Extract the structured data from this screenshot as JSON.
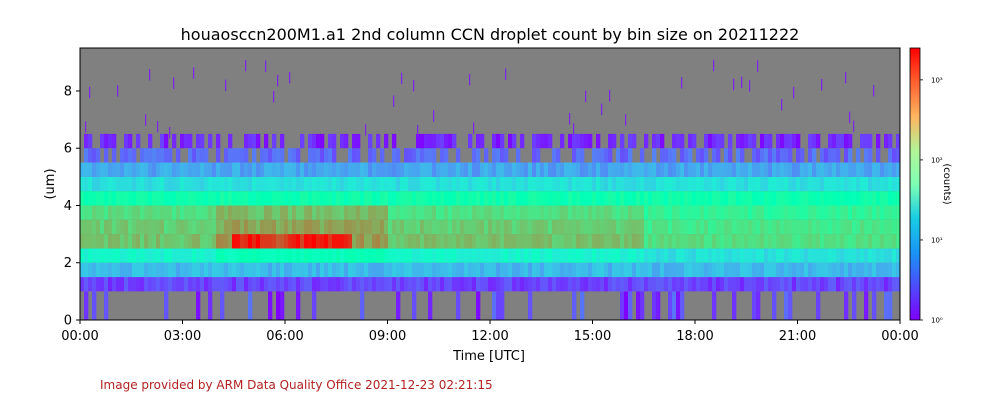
{
  "chart_data": {
    "type": "heatmap",
    "title": "houaosccn200M1.a1 2nd column CCN droplet count by bin size on 20211222",
    "xlabel": "Time [UTC]",
    "ylabel": "(um)",
    "x_tick_labels": [
      "00:00",
      "03:00",
      "06:00",
      "09:00",
      "12:00",
      "15:00",
      "18:00",
      "21:00",
      "00:00"
    ],
    "x_range_hours": [
      0,
      24
    ],
    "y_tick_labels": [
      "0",
      "2",
      "4",
      "6",
      "8"
    ],
    "y_ticks": [
      0,
      2,
      4,
      6,
      8
    ],
    "ylim": [
      0,
      9.5
    ],
    "colorbar": {
      "label": "(counts)",
      "scale": "log",
      "colormap": "rainbow",
      "range": [
        1,
        2500
      ],
      "tick_labels": [
        "10⁰",
        "10¹",
        "10²",
        "10³"
      ],
      "tick_values": [
        1,
        10,
        100,
        1000
      ]
    },
    "missing_color": "#808080",
    "bins": [
      {
        "lo": 0.0,
        "hi": 1.0,
        "typical_counts": 0
      },
      {
        "lo": 1.0,
        "hi": 1.5,
        "typical_counts": 2
      },
      {
        "lo": 1.5,
        "hi": 2.0,
        "typical_counts": 8
      },
      {
        "lo": 2.0,
        "hi": 2.5,
        "typical_counts": 25
      },
      {
        "lo": 2.5,
        "hi": 3.0,
        "typical_counts": 300
      },
      {
        "lo": 3.0,
        "hi": 3.5,
        "typical_counts": 250
      },
      {
        "lo": 3.5,
        "hi": 4.0,
        "typical_counts": 180
      },
      {
        "lo": 4.0,
        "hi": 4.5,
        "typical_counts": 60
      },
      {
        "lo": 4.5,
        "hi": 5.0,
        "typical_counts": 15
      },
      {
        "lo": 5.0,
        "hi": 5.5,
        "typical_counts": 6
      },
      {
        "lo": 5.5,
        "hi": 6.0,
        "typical_counts": 3
      },
      {
        "lo": 6.0,
        "hi": 6.5,
        "typical_counts": 1.5
      }
    ],
    "peak": {
      "bin_um": [
        2.5,
        3.0
      ],
      "time_range_utc": [
        "04:30",
        "08:00"
      ],
      "approx_counts": 2000
    }
  },
  "footer": {
    "text": "Image provided by ARM Data Quality Office 2021-12-23 02:21:15"
  },
  "colors": {
    "footer_text": "#b22222",
    "background_missing": "#808080"
  }
}
